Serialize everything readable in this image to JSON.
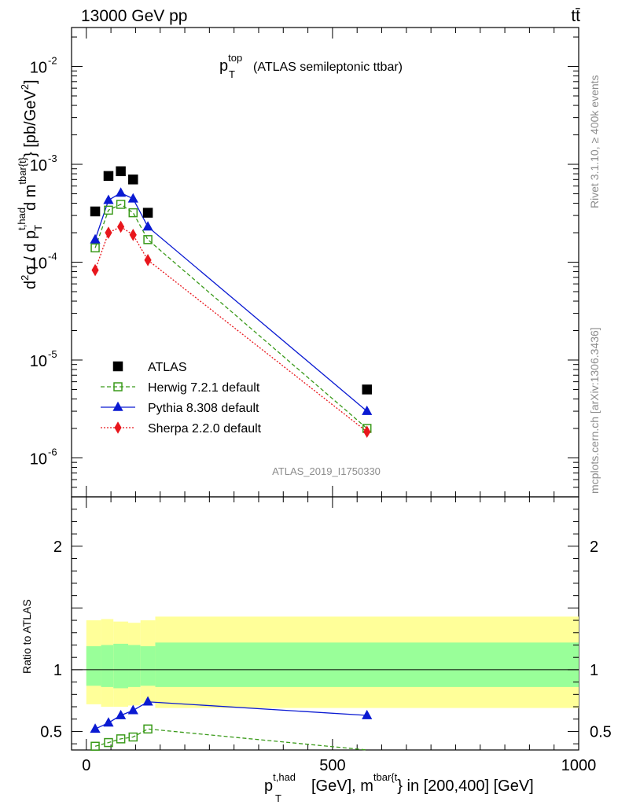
{
  "header": {
    "left": "13000 GeV pp",
    "right": "tt̄"
  },
  "side_labels": {
    "rivet": "Rivet 3.1.10, ≥ 400k events",
    "mcplots": "mcplots.cern.ch [arXiv:1306.3436]"
  },
  "plot_title": {
    "main": "p",
    "sup": "top",
    "sub": "T",
    "rest": "(ATLAS semileptonic ttbar)"
  },
  "analysis_id": "ATLAS_2019_I1750330",
  "y_axis_label": {
    "part1": "d",
    "sup1": "2",
    "part2": "σ / d p",
    "sup2": "t,had",
    "sub2": "T",
    "part3": "d m",
    "sup3": "tbar{t}",
    "part4": "} [pb/GeV",
    "sup4": "2",
    "part5": "]"
  },
  "x_axis_label": {
    "p": "p",
    "sup": "t,had",
    "sub": "T",
    "mid": "[GeV], m",
    "sup2": "tbar{t",
    "end": "} in [200,400] [GeV]"
  },
  "ratio_ylabel": "Ratio to ATLAS",
  "colors": {
    "atlas": "#000000",
    "herwig": "#3a9a1a",
    "pythia": "#0a1ad2",
    "sherpa": "#e8161c",
    "band_inner": "#99ff99",
    "band_outer": "#ffff99"
  },
  "chart_data": {
    "type": "scatter",
    "x_ticks": [
      "0",
      "500",
      "1000"
    ],
    "y_ticks_main": [
      "10",
      "10",
      "10",
      "10",
      "10"
    ],
    "y_ticks_main_exp": [
      "-6",
      "-5",
      "-4",
      "-3",
      "-2"
    ],
    "y_ticks_ratio": [
      "0.5",
      "1",
      "2"
    ],
    "xlim": [
      -30,
      1000
    ],
    "ylim_main_log": [
      4e-07,
      0.025
    ],
    "ylim_ratio": [
      0.35,
      2.4
    ],
    "x": [
      18,
      45,
      70,
      95,
      125,
      570
    ],
    "series": [
      {
        "name": "ATLAS",
        "marker": "square",
        "values": [
          0.00033,
          0.00076,
          0.00085,
          0.0007,
          0.00032,
          5e-06
        ]
      },
      {
        "name": "Herwig 7.2.1 default",
        "marker": "open-square",
        "line": "dashed",
        "values": [
          0.00014,
          0.00034,
          0.00039,
          0.00032,
          0.00017,
          2e-06
        ],
        "ratio": [
          0.38,
          0.41,
          0.44,
          0.455,
          0.52,
          0.33
        ]
      },
      {
        "name": "Pythia 8.308 default",
        "marker": "triangle",
        "line": "solid",
        "values": [
          0.00017,
          0.00043,
          0.00051,
          0.000445,
          0.00023,
          3e-06
        ],
        "ratio": [
          0.52,
          0.57,
          0.63,
          0.67,
          0.74,
          0.63
        ]
      },
      {
        "name": "Sherpa 2.2.0 default",
        "marker": "diamond",
        "line": "dotted",
        "values": [
          8.3e-05,
          0.0002,
          0.00023,
          0.00019,
          0.000105,
          1.85e-06
        ]
      }
    ],
    "uncertainty_band": {
      "x_edges": [
        0,
        30,
        55,
        85,
        110,
        140,
        1000
      ],
      "inner_low": [
        0.87,
        0.86,
        0.85,
        0.86,
        0.87,
        0.86
      ],
      "inner_high": [
        1.19,
        1.2,
        1.21,
        1.2,
        1.19,
        1.22
      ],
      "outer_low": [
        0.72,
        0.7,
        0.7,
        0.71,
        0.73,
        0.69
      ],
      "outer_high": [
        1.4,
        1.41,
        1.39,
        1.38,
        1.4,
        1.43
      ]
    }
  }
}
